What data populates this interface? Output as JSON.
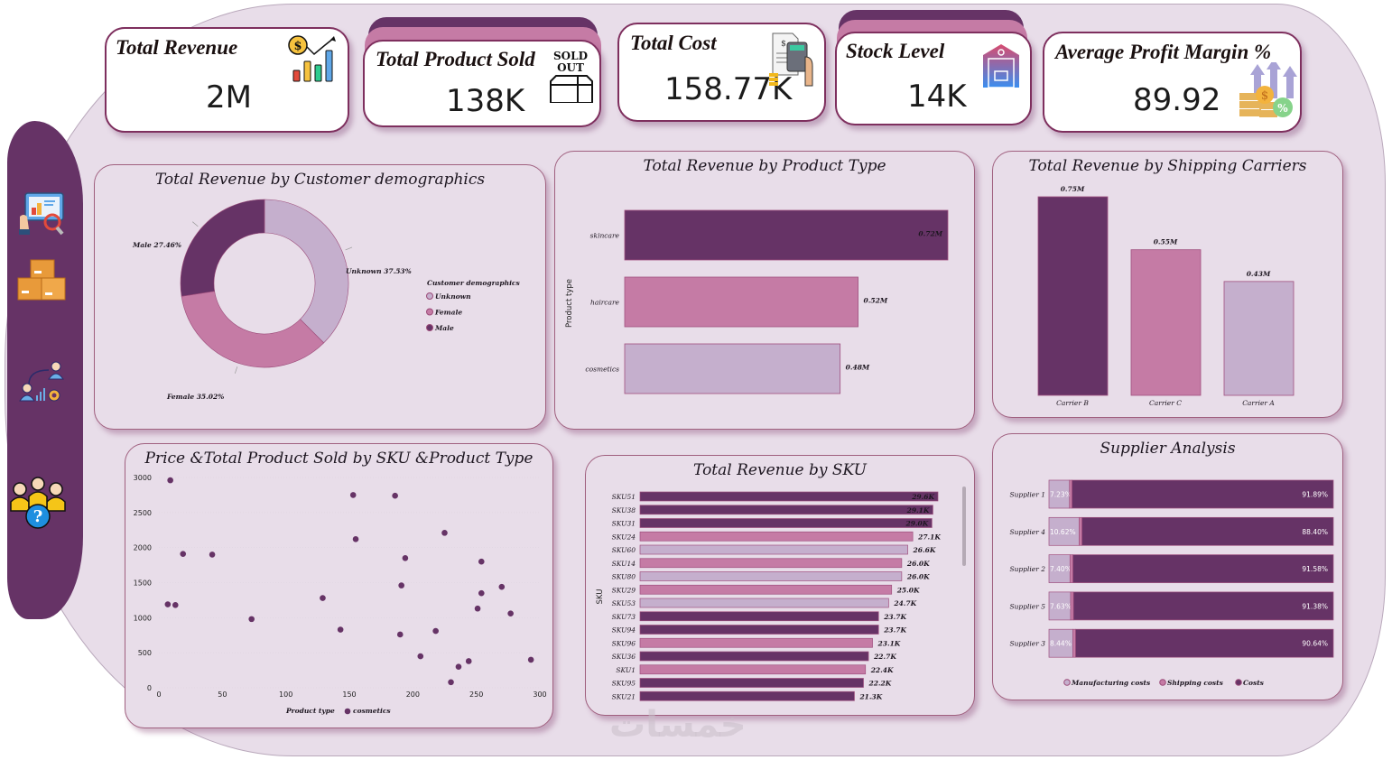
{
  "colors": {
    "dark": "#663366",
    "mid": "#c57ba5",
    "light": "#c5afcd",
    "background": "#e8dde9",
    "card_border": "#7e2f5e"
  },
  "sidebar": {
    "items": [
      {
        "icon": "dashboard-analytics-icon"
      },
      {
        "icon": "boxes-inventory-icon"
      },
      {
        "icon": "people-analytics-icon"
      },
      {
        "icon": "customers-question-icon"
      }
    ]
  },
  "kpis": {
    "total_revenue": {
      "title": "Total Revenue",
      "value": "2M",
      "icon": "revenue-chart-icon"
    },
    "total_product_sold": {
      "title": "Total Product Sold",
      "value": "138K",
      "icon": "sold-out-box-icon",
      "icon_text_1": "SOLD",
      "icon_text_2": "OUT"
    },
    "total_cost": {
      "title": "Total Cost",
      "value": "158.77K",
      "icon": "calculator-bill-icon"
    },
    "stock_level": {
      "title": "Stock Level",
      "value": "14K",
      "icon": "warehouse-icon"
    },
    "avg_profit_margin": {
      "title": "Average Profit Margin %",
      "value": "89.92",
      "icon": "coins-percent-icon"
    }
  },
  "watermark": "خمسات",
  "chart_data": [
    {
      "id": "demographics",
      "type": "pie",
      "title": "Total Revenue by Customer demographics",
      "legend_title": "Customer demographics",
      "legend_position": "right",
      "slices": [
        {
          "label": "Unknown",
          "value": 37.53,
          "display": "Unknown 37.53%",
          "color": "#c5afcd"
        },
        {
          "label": "Female",
          "value": 35.02,
          "display": "Female 35.02%",
          "color": "#c57ba5"
        },
        {
          "label": "Male",
          "value": 27.46,
          "display": "Male 27.46%",
          "color": "#663366"
        }
      ]
    },
    {
      "id": "product_type",
      "type": "bar",
      "orientation": "horizontal",
      "title": "Total Revenue by Product Type",
      "ylabel": "Product type",
      "categories": [
        "skincare",
        "haircare",
        "cosmetics"
      ],
      "values": [
        0.72,
        0.52,
        0.48
      ],
      "labels": [
        "0.72M",
        "0.52M",
        "0.48M"
      ],
      "colors": [
        "#663366",
        "#c57ba5",
        "#c5afcd"
      ],
      "xlim": [
        0,
        0.72
      ]
    },
    {
      "id": "shipping",
      "type": "bar",
      "title": "Total Revenue by Shipping Carriers",
      "categories": [
        "Carrier B",
        "Carrier C",
        "Carrier A"
      ],
      "values": [
        0.75,
        0.55,
        0.43
      ],
      "labels": [
        "0.75M",
        "0.55M",
        "0.43M"
      ],
      "colors": [
        "#663366",
        "#c57ba5",
        "#c5afcd"
      ],
      "ylim": [
        0,
        0.75
      ]
    },
    {
      "id": "price_sold",
      "type": "scatter",
      "title": "Price &Total Product Sold by SKU &Product Type",
      "legend_title": "Product type",
      "legend_position": "bottom",
      "series": [
        {
          "name": "cosmetics",
          "color": "#663366"
        }
      ],
      "xlim": [
        0,
        300
      ],
      "ylim": [
        0,
        3000
      ],
      "xticks": [
        0,
        50,
        100,
        150,
        200,
        250,
        300
      ],
      "yticks": [
        0,
        500,
        1000,
        1500,
        2000,
        2500,
        3000
      ],
      "points": [
        [
          9,
          2960
        ],
        [
          7,
          1190
        ],
        [
          13,
          1180
        ],
        [
          19,
          1910
        ],
        [
          42,
          1900
        ],
        [
          73,
          980
        ],
        [
          129,
          1280
        ],
        [
          143,
          830
        ],
        [
          153,
          2750
        ],
        [
          155,
          2120
        ],
        [
          186,
          2740
        ],
        [
          190,
          760
        ],
        [
          191,
          1460
        ],
        [
          194,
          1850
        ],
        [
          206,
          450
        ],
        [
          218,
          810
        ],
        [
          225,
          2210
        ],
        [
          230,
          80
        ],
        [
          236,
          300
        ],
        [
          244,
          380
        ],
        [
          251,
          1130
        ],
        [
          254,
          1800
        ],
        [
          254,
          1350
        ],
        [
          270,
          1440
        ],
        [
          277,
          1060
        ],
        [
          293,
          400
        ]
      ]
    },
    {
      "id": "sku",
      "type": "bar",
      "orientation": "horizontal",
      "title": "Total Revenue by SKU",
      "ylabel": "SKU",
      "categories": [
        "SKU51",
        "SKU38",
        "SKU31",
        "SKU24",
        "SKU60",
        "SKU14",
        "SKU80",
        "SKU29",
        "SKU53",
        "SKU73",
        "SKU94",
        "SKU96",
        "SKU36",
        "SKU1",
        "SKU95",
        "SKU21"
      ],
      "values": [
        29.6,
        29.1,
        29.0,
        27.1,
        26.6,
        26.0,
        26.0,
        25.0,
        24.7,
        23.7,
        23.7,
        23.1,
        22.7,
        22.4,
        22.2,
        21.3
      ],
      "labels": [
        "29.6K",
        "29.1K",
        "29.0K",
        "27.1K",
        "26.6K",
        "26.0K",
        "26.0K",
        "25.0K",
        "24.7K",
        "23.7K",
        "23.7K",
        "23.1K",
        "22.7K",
        "22.4K",
        "22.2K",
        "21.3K"
      ],
      "product_type": [
        "skincare",
        "skincare",
        "skincare",
        "haircare",
        "cosmetics",
        "haircare",
        "cosmetics",
        "haircare",
        "cosmetics",
        "skincare",
        "skincare",
        "haircare",
        "skincare",
        "haircare",
        "skincare",
        "skincare"
      ],
      "xlim": [
        0,
        29.6
      ]
    },
    {
      "id": "supplier",
      "type": "bar",
      "orientation": "horizontal",
      "stacked": "100%",
      "title": "Supplier Analysis",
      "legend_position": "bottom",
      "categories": [
        "Supplier 1",
        "Supplier 4",
        "Supplier 2",
        "Supplier 5",
        "Supplier 3"
      ],
      "series": [
        {
          "name": "Manufacturing costs",
          "color": "#c5afcd",
          "values": [
            7.23,
            10.62,
            7.4,
            7.63,
            8.44
          ],
          "labels": [
            "7.23%",
            "10.62%",
            "7.40%",
            "7.63%",
            "8.44%"
          ]
        },
        {
          "name": "Shipping costs",
          "color": "#c57ba5",
          "values": [
            0.88,
            0.98,
            1.02,
            0.99,
            0.92
          ]
        },
        {
          "name": "Costs",
          "color": "#663366",
          "values": [
            91.89,
            88.4,
            91.58,
            91.38,
            90.64
          ],
          "labels": [
            "91.89%",
            "88.40%",
            "91.58%",
            "91.38%",
            "90.64%"
          ]
        }
      ]
    }
  ]
}
